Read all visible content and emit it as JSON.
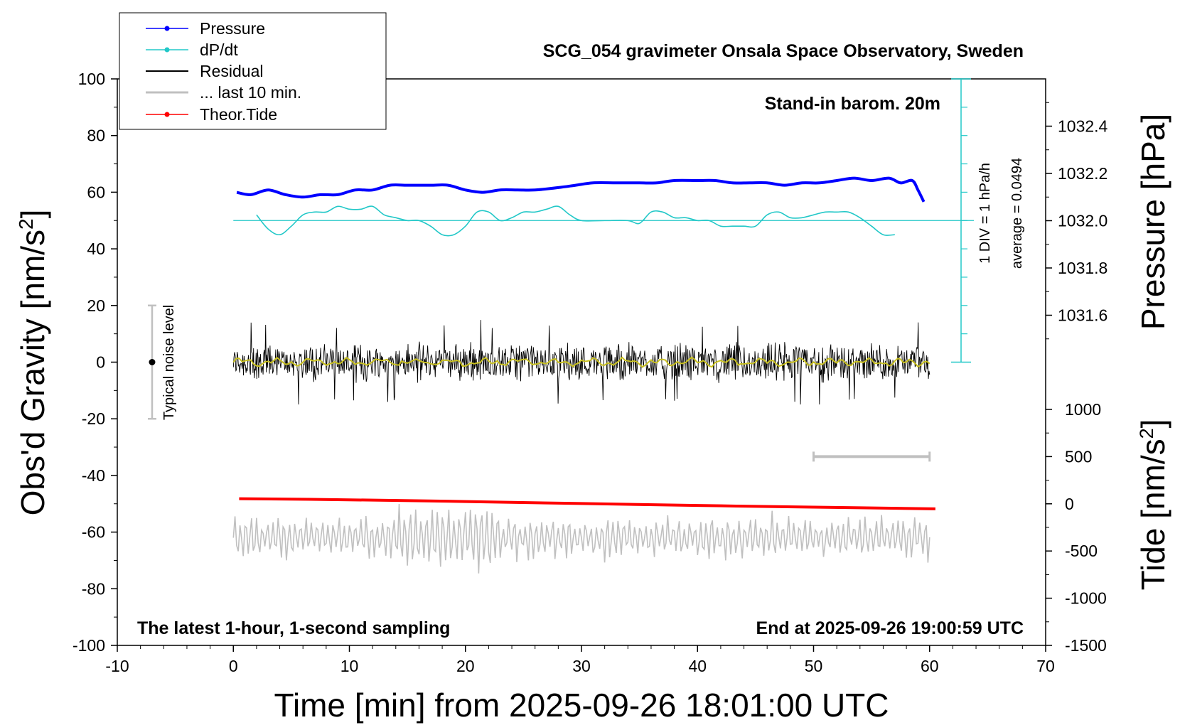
{
  "chart_data": {
    "type": "line",
    "title": "SCG_054 gravimeter Onsala Space Observatory, Sweden",
    "xlabel": "Time [min] from 2025-09-26 18:01:00 UTC",
    "xlim": [
      -10,
      70
    ],
    "xticks": [
      "-10",
      "0",
      "10",
      "20",
      "30",
      "40",
      "50",
      "60",
      "70"
    ],
    "y_left": {
      "label_main": "Obs'd Gravity [nm/s",
      "label_sup": "2",
      "label_end": "]",
      "ylim": [
        -100,
        100
      ],
      "ticks": [
        "100",
        "80",
        "60",
        "40",
        "20",
        "0",
        "-20",
        "-40",
        "-60",
        "-80",
        "-100"
      ]
    },
    "y_right_pressure": {
      "label": "Pressure [hPa]",
      "range": [
        1031.4,
        1032.6
      ],
      "ticks": [
        "1032.4",
        "1032.2",
        "1032.0",
        "1031.8",
        "1031.6"
      ]
    },
    "y_right_tide": {
      "label_main": "Tide [nm/s",
      "label_sup": "2",
      "label_end": "]",
      "range": [
        -1500,
        1000
      ],
      "ticks": [
        "1000",
        "500",
        "0",
        "-500",
        "-1000",
        "-1500"
      ]
    },
    "legend": {
      "position": "top-left",
      "entries": [
        "Pressure",
        "dP/dt",
        "Residual",
        "... last 10 min.",
        "Theor.Tide"
      ]
    },
    "annotations": {
      "barometer": "Stand-in barom. 20m",
      "div_note": "1 DIV = 1 hPa/h",
      "average_note": "average = 0.0494",
      "noise_label": "Typical noise level",
      "bottom_left": "The latest 1-hour, 1-second sampling",
      "bottom_right": "End at 2025-09-26 19:00:59 UTC"
    },
    "noise_bar": {
      "x": -7,
      "center": 0,
      "half_range": 20
    },
    "ten_min_bar": {
      "x_start": 50,
      "x_end": 60,
      "tide_value": 500
    },
    "series": [
      {
        "name": "Pressure",
        "color": "#0000ff",
        "units": "hPa",
        "points": [
          [
            0.3,
            1032.12
          ],
          [
            1.5,
            1032.11
          ],
          [
            3,
            1032.13
          ],
          [
            4.5,
            1032.11
          ],
          [
            6,
            1032.1
          ],
          [
            7.5,
            1032.11
          ],
          [
            9,
            1032.11
          ],
          [
            10.5,
            1032.13
          ],
          [
            12,
            1032.13
          ],
          [
            13.5,
            1032.15
          ],
          [
            15,
            1032.15
          ],
          [
            17,
            1032.15
          ],
          [
            18.5,
            1032.15
          ],
          [
            20,
            1032.13
          ],
          [
            21.5,
            1032.12
          ],
          [
            23,
            1032.13
          ],
          [
            24.5,
            1032.13
          ],
          [
            26,
            1032.13
          ],
          [
            28,
            1032.14
          ],
          [
            29.5,
            1032.15
          ],
          [
            31,
            1032.16
          ],
          [
            33,
            1032.16
          ],
          [
            35,
            1032.16
          ],
          [
            36.5,
            1032.16
          ],
          [
            38,
            1032.17
          ],
          [
            40,
            1032.17
          ],
          [
            41.5,
            1032.17
          ],
          [
            43,
            1032.16
          ],
          [
            44.5,
            1032.16
          ],
          [
            46,
            1032.16
          ],
          [
            47.5,
            1032.15
          ],
          [
            49,
            1032.16
          ],
          [
            50.5,
            1032.16
          ],
          [
            52,
            1032.17
          ],
          [
            53.5,
            1032.18
          ],
          [
            55,
            1032.17
          ],
          [
            56.5,
            1032.18
          ],
          [
            57.5,
            1032.16
          ],
          [
            58.5,
            1032.17
          ],
          [
            59,
            1032.13
          ],
          [
            59.5,
            1032.08
          ]
        ]
      },
      {
        "name": "dP/dt",
        "color": "#22c8c8",
        "baseline": 50,
        "points": [
          [
            2,
            52
          ],
          [
            3,
            47
          ],
          [
            4,
            45
          ],
          [
            5,
            48
          ],
          [
            6,
            52
          ],
          [
            7,
            53
          ],
          [
            8,
            53
          ],
          [
            9,
            55
          ],
          [
            10,
            54
          ],
          [
            11,
            54
          ],
          [
            12,
            55
          ],
          [
            13,
            52
          ],
          [
            14,
            51
          ],
          [
            15,
            50
          ],
          [
            16,
            50
          ],
          [
            17,
            48
          ],
          [
            18,
            45
          ],
          [
            19,
            45
          ],
          [
            20,
            48
          ],
          [
            21,
            53
          ],
          [
            22,
            53
          ],
          [
            23,
            50
          ],
          [
            24,
            51
          ],
          [
            25,
            53
          ],
          [
            26,
            53
          ],
          [
            27,
            54
          ],
          [
            28,
            55
          ],
          [
            29,
            52
          ],
          [
            30,
            50
          ],
          [
            32,
            50
          ],
          [
            34,
            50
          ],
          [
            35,
            49
          ],
          [
            36,
            53
          ],
          [
            37,
            53
          ],
          [
            38,
            51
          ],
          [
            39,
            51
          ],
          [
            40,
            50
          ],
          [
            41,
            50
          ],
          [
            42,
            48
          ],
          [
            43,
            48
          ],
          [
            44,
            48
          ],
          [
            45,
            48
          ],
          [
            46,
            52
          ],
          [
            47,
            53
          ],
          [
            48,
            51
          ],
          [
            49,
            51
          ],
          [
            50,
            52
          ],
          [
            51,
            53
          ],
          [
            52,
            53
          ],
          [
            53,
            53
          ],
          [
            54,
            51
          ],
          [
            55,
            48
          ],
          [
            56,
            45
          ],
          [
            57,
            45
          ]
        ]
      },
      {
        "name": "Residual",
        "color": "#000000",
        "x_range": [
          0,
          60
        ],
        "typical_amplitude": 7,
        "max_amplitude": 15
      },
      {
        "name": "... last 10 min.",
        "color": "#c0c0c0",
        "x_range": [
          0,
          60
        ],
        "center_y": -62,
        "amplitude_range": [
          -75,
          -46
        ]
      },
      {
        "name": "Theor.Tide",
        "color": "#ff0000",
        "units": "nm/s^2",
        "points": [
          [
            0.5,
            -48.2
          ],
          [
            10,
            -48.6
          ],
          [
            20,
            -49.2
          ],
          [
            30,
            -49.9
          ],
          [
            40,
            -50.6
          ],
          [
            50,
            -51.2
          ],
          [
            60.5,
            -51.8
          ]
        ]
      }
    ]
  }
}
